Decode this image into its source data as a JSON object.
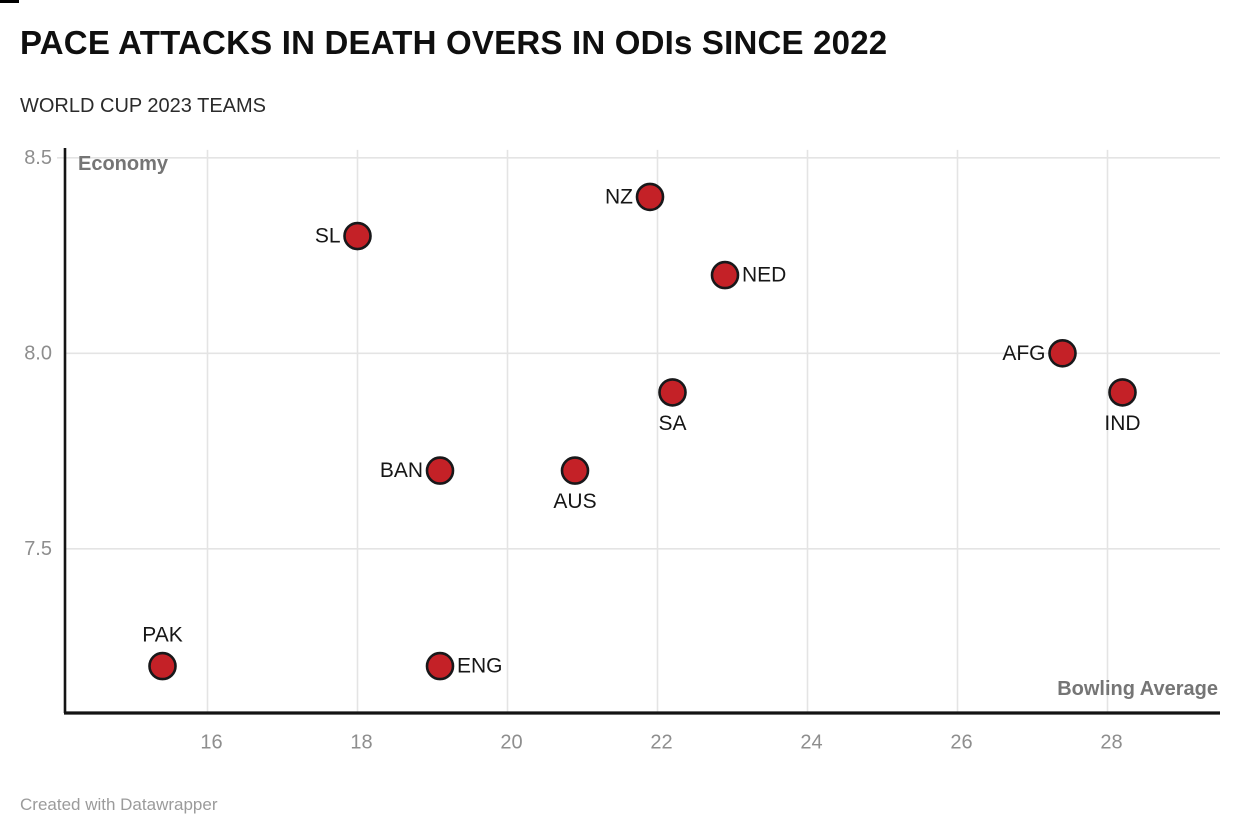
{
  "header": {
    "title": "PACE ATTACKS IN DEATH OVERS IN ODIs SINCE 2022",
    "subtitle": "WORLD CUP 2023 TEAMS"
  },
  "footer": {
    "credit": "Created with Datawrapper"
  },
  "chart_data": {
    "type": "scatter",
    "title": "PACE ATTACKS IN DEATH OVERS IN ODIs SINCE 2022",
    "subtitle": "WORLD CUP 2023 TEAMS",
    "xlabel": "Bowling Average",
    "ylabel": "Economy",
    "xlim": [
      14.1,
      29.5
    ],
    "ylim": [
      7.08,
      8.52
    ],
    "x_ticks": [
      16,
      18,
      20,
      22,
      24,
      26,
      28
    ],
    "y_ticks": [
      7.5,
      8.0,
      8.5
    ],
    "grid": true,
    "legend": "none",
    "colors": {
      "point_fill": "#c42127",
      "point_stroke": "#18181a",
      "gridline": "#e4e4e4",
      "axis_line": "#141414",
      "tick_label": "#8e8e8e",
      "axis_title": "#757575",
      "point_label": "#161616"
    },
    "points": [
      {
        "label": "PAK",
        "x": 15.4,
        "y": 7.2,
        "label_pos": "top"
      },
      {
        "label": "SL",
        "x": 18.0,
        "y": 8.3,
        "label_pos": "left"
      },
      {
        "label": "BAN",
        "x": 19.1,
        "y": 7.7,
        "label_pos": "left"
      },
      {
        "label": "ENG",
        "x": 19.1,
        "y": 7.2,
        "label_pos": "right"
      },
      {
        "label": "AUS",
        "x": 20.9,
        "y": 7.7,
        "label_pos": "bottom"
      },
      {
        "label": "NZ",
        "x": 21.9,
        "y": 8.4,
        "label_pos": "left"
      },
      {
        "label": "SA",
        "x": 22.2,
        "y": 7.9,
        "label_pos": "bottom"
      },
      {
        "label": "NED",
        "x": 22.9,
        "y": 8.2,
        "label_pos": "right"
      },
      {
        "label": "AFG",
        "x": 27.4,
        "y": 8.0,
        "label_pos": "left"
      },
      {
        "label": "IND",
        "x": 28.2,
        "y": 7.9,
        "label_pos": "bottom"
      }
    ]
  }
}
